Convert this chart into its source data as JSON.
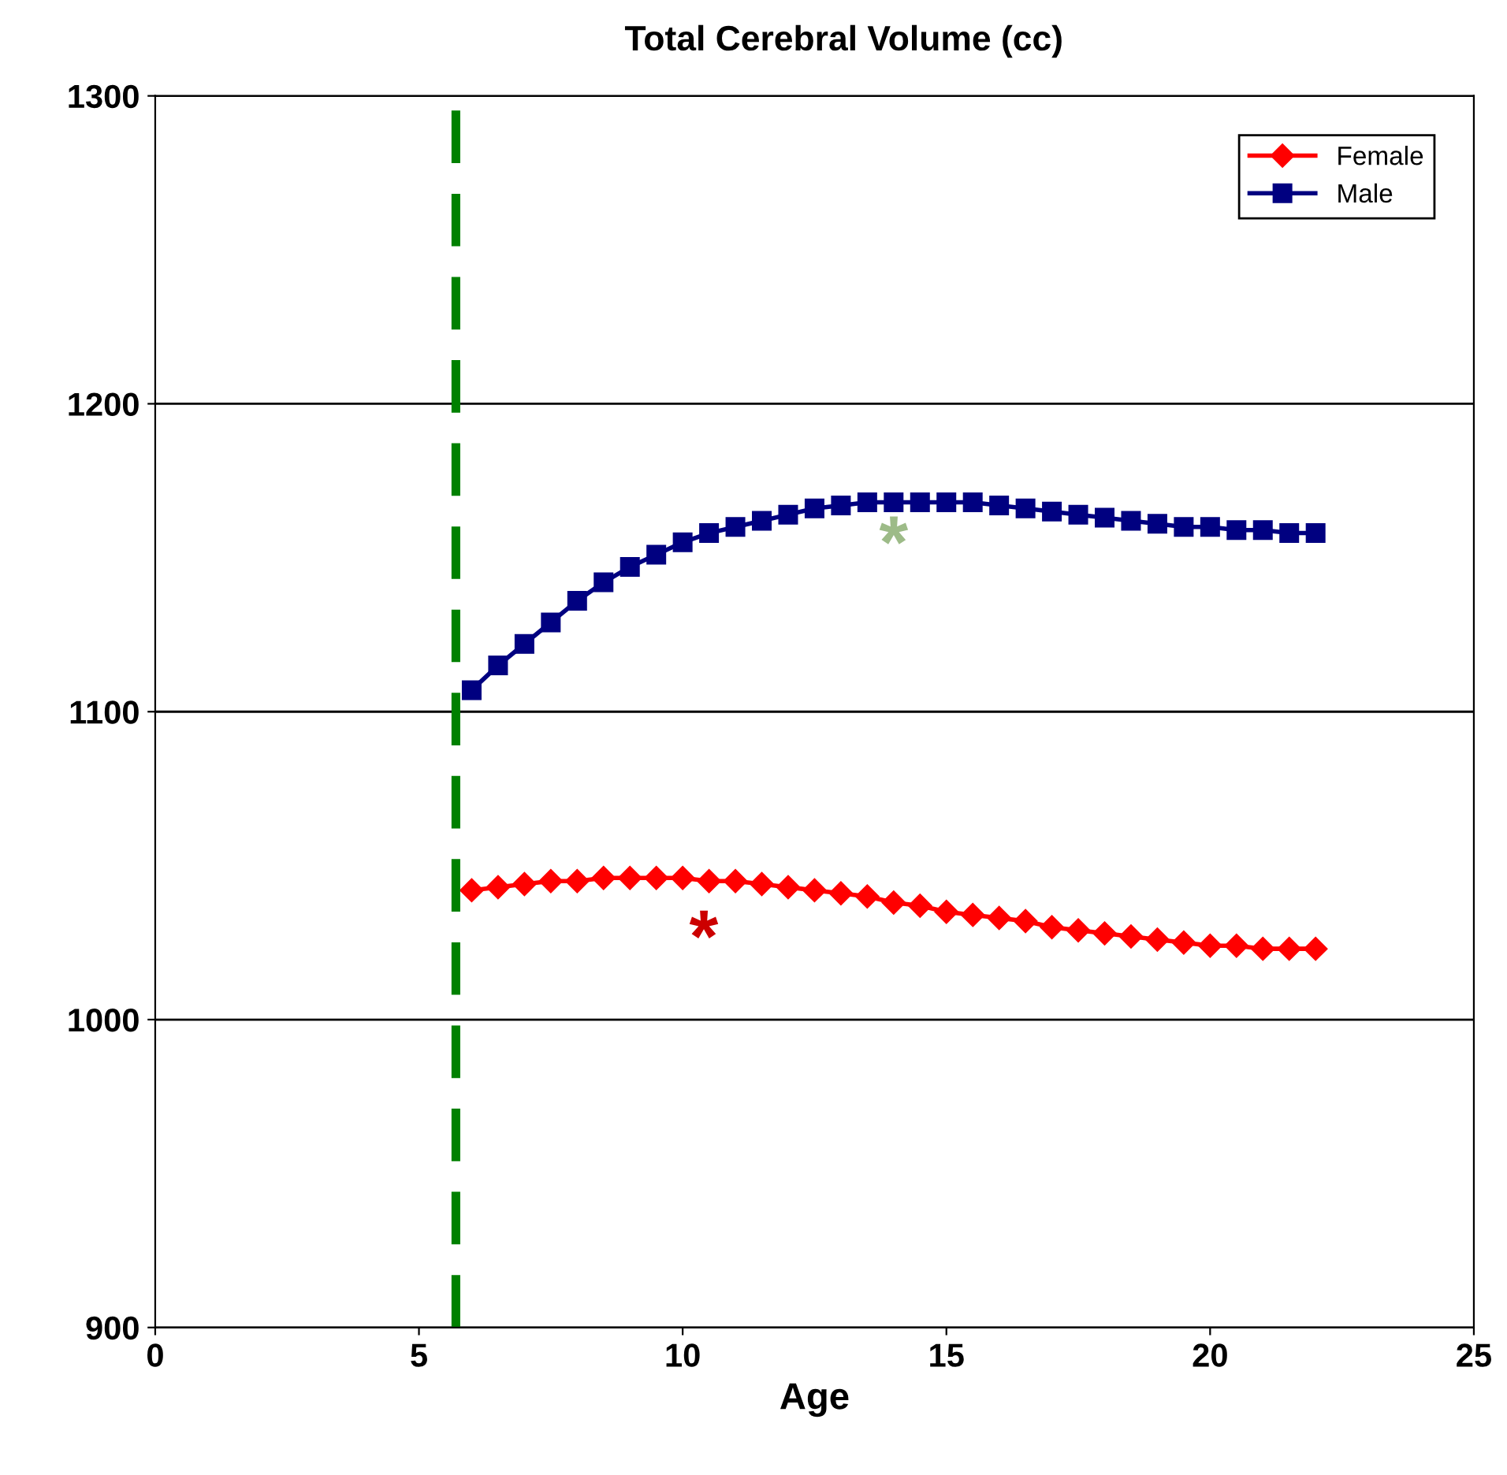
{
  "chart_data": {
    "type": "line",
    "title": "Total Cerebral Volume (cc)",
    "xlabel": "Age",
    "x": [
      6,
      6.5,
      7,
      7.5,
      8,
      8.5,
      9,
      9.5,
      10,
      10.5,
      11,
      11.5,
      12,
      12.5,
      13,
      13.5,
      14,
      14.5,
      15,
      15.5,
      16,
      16.5,
      17,
      17.5,
      18,
      18.5,
      19,
      19.5,
      20,
      20.5,
      21,
      21.5,
      22
    ],
    "series": [
      {
        "name": "Female",
        "color": "#ff0000",
        "marker": "diamond",
        "values": [
          1042,
          1043,
          1044,
          1045,
          1045,
          1046,
          1046,
          1046,
          1046,
          1045,
          1045,
          1044,
          1043,
          1042,
          1041,
          1040,
          1038,
          1037,
          1035,
          1034,
          1033,
          1032,
          1030,
          1029,
          1028,
          1027,
          1026,
          1025,
          1024,
          1024,
          1023,
          1023,
          1023
        ]
      },
      {
        "name": "Male",
        "color": "#000080",
        "marker": "square",
        "values": [
          1107,
          1115,
          1122,
          1129,
          1136,
          1142,
          1147,
          1151,
          1155,
          1158,
          1160,
          1162,
          1164,
          1166,
          1167,
          1168,
          1168,
          1168,
          1168,
          1168,
          1167,
          1166,
          1165,
          1164,
          1163,
          1162,
          1161,
          1160,
          1160,
          1159,
          1159,
          1158,
          1158
        ]
      }
    ],
    "xlim": [
      0,
      25
    ],
    "xticks": [
      0,
      5,
      10,
      15,
      20,
      25
    ],
    "ylim": [
      900,
      1300
    ],
    "yticks": [
      900,
      1000,
      1100,
      1200,
      1300
    ],
    "grid": "y",
    "legend": "top right",
    "ref_lines": [
      {
        "axis": "x",
        "value": 5.7,
        "color": "#008000",
        "line_style": "dashed"
      }
    ],
    "annotations": [
      "*",
      "*"
    ]
  }
}
